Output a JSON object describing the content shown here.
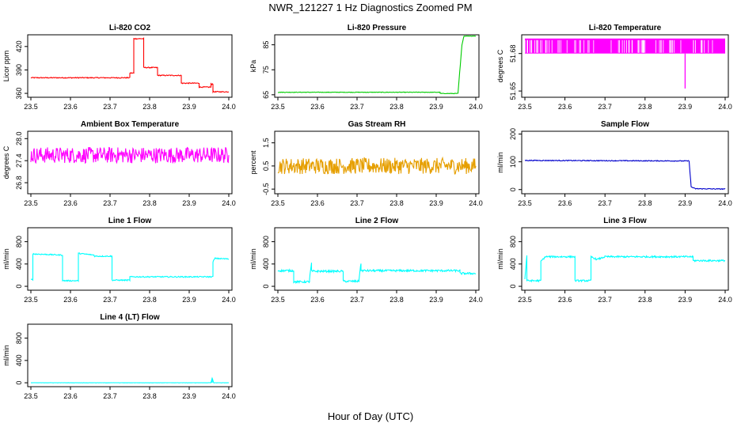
{
  "title": "NWR_121227  1 Hz Diagnostics Zoomed PM",
  "xlabel": "Hour of Day (UTC)",
  "chart_data": [
    {
      "type": "line",
      "title": "Li-820 CO2",
      "ylabel": "Licor ppm",
      "xlim": [
        23.5,
        24.0
      ],
      "ylim": [
        355,
        435
      ],
      "xticks": [
        "23.5",
        "23.6",
        "23.7",
        "23.8",
        "23.9",
        "24.0"
      ],
      "yticks": [
        "360",
        "390",
        "420"
      ],
      "color": "#ff0000",
      "noise": 0.6,
      "x": [
        23.5,
        23.75,
        23.75,
        23.76,
        23.76,
        23.785,
        23.785,
        23.82,
        23.82,
        23.88,
        23.88,
        23.925,
        23.925,
        23.955,
        23.955,
        23.96,
        23.96,
        24.0
      ],
      "y": [
        380,
        380,
        386,
        386,
        430,
        430,
        393,
        393,
        383,
        383,
        373,
        373,
        368,
        368,
        372,
        372,
        362,
        362
      ]
    },
    {
      "type": "line",
      "title": "Li-820 Pressure",
      "ylabel": "kPa",
      "xlim": [
        23.5,
        24.0
      ],
      "ylim": [
        64,
        89
      ],
      "xticks": [
        "23.5",
        "23.6",
        "23.7",
        "23.8",
        "23.9",
        "24.0"
      ],
      "yticks": [
        "65",
        "75",
        "85"
      ],
      "color": "#00cc00",
      "noise": 0.1,
      "x": [
        23.5,
        23.91,
        23.91,
        23.955,
        23.965,
        23.97,
        24.0
      ],
      "y": [
        66,
        66,
        65.5,
        65.5,
        85,
        88.5,
        88.5
      ]
    },
    {
      "type": "line",
      "title": "Li-820 Temperature",
      "ylabel": "degrees C",
      "xlim": [
        23.5,
        24.0
      ],
      "ylim": [
        51.645,
        51.695
      ],
      "xticks": [
        "23.5",
        "23.6",
        "23.7",
        "23.8",
        "23.9",
        "24.0"
      ],
      "yticks": [
        "51.65",
        "51.68"
      ],
      "color": "#ff00ff",
      "noise": 0,
      "x": [
        23.5,
        24.0
      ],
      "y": [
        51.68,
        51.68
      ],
      "fill_band": [
        51.68,
        51.692
      ],
      "spikes": [
        [
          23.9,
          51.652
        ]
      ]
    },
    {
      "type": "line",
      "title": "Ambient Box Temperature",
      "ylabel": "degrees C",
      "xlim": [
        23.5,
        24.0
      ],
      "ylim": [
        26.5,
        28.2
      ],
      "xticks": [
        "23.5",
        "23.6",
        "23.7",
        "23.8",
        "23.9",
        "24.0"
      ],
      "yticks": [
        "26.8",
        "27.4",
        "28.0"
      ],
      "color": "#ff00ff",
      "noise": 0.22,
      "x": [
        23.5,
        24.0
      ],
      "y": [
        27.55,
        27.55
      ]
    },
    {
      "type": "line",
      "title": "Gas Stream RH",
      "ylabel": "percent",
      "xlim": [
        23.5,
        24.0
      ],
      "ylim": [
        -0.7,
        2.0
      ],
      "xticks": [
        "23.5",
        "23.6",
        "23.7",
        "23.8",
        "23.9",
        "24.0"
      ],
      "yticks": [
        "-0.5",
        "0.5",
        "1.5"
      ],
      "color": "#e69f00",
      "noise": 0.35,
      "x": [
        23.5,
        24.0
      ],
      "y": [
        0.5,
        0.5
      ]
    },
    {
      "type": "line",
      "title": "Sample Flow",
      "ylabel": "ml/min",
      "xlim": [
        23.5,
        24.0
      ],
      "ylim": [
        -15,
        210
      ],
      "xticks": [
        "23.5",
        "23.6",
        "23.7",
        "23.8",
        "23.9",
        "24.0"
      ],
      "yticks": [
        "0",
        "100",
        "200"
      ],
      "color": "#0000cc",
      "noise": 1.5,
      "x": [
        23.5,
        23.91,
        23.915,
        23.925,
        24.0
      ],
      "y": [
        105,
        103,
        10,
        3,
        2
      ]
    },
    {
      "type": "line",
      "title": "Line 1 Flow",
      "ylabel": "ml/min",
      "xlim": [
        23.5,
        24.0
      ],
      "ylim": [
        -70,
        1050
      ],
      "xticks": [
        "23.5",
        "23.6",
        "23.7",
        "23.8",
        "23.9",
        "24.0"
      ],
      "yticks": [
        "0",
        "400",
        "800"
      ],
      "color": "#00ffff",
      "noise": 10,
      "x": [
        23.5,
        23.505,
        23.505,
        23.58,
        23.58,
        23.62,
        23.62,
        23.66,
        23.66,
        23.705,
        23.705,
        23.75,
        23.75,
        23.96,
        23.96,
        23.965,
        24.0
      ],
      "y": [
        120,
        120,
        580,
        560,
        100,
        100,
        590,
        560,
        540,
        540,
        110,
        110,
        170,
        170,
        440,
        500,
        490
      ]
    },
    {
      "type": "line",
      "title": "Line 2 Flow",
      "ylabel": "ml/min",
      "xlim": [
        23.5,
        24.0
      ],
      "ylim": [
        -70,
        1050
      ],
      "xticks": [
        "23.5",
        "23.6",
        "23.7",
        "23.8",
        "23.9",
        "24.0"
      ],
      "yticks": [
        "0",
        "400",
        "800"
      ],
      "color": "#00ffff",
      "noise": 18,
      "x": [
        23.5,
        23.54,
        23.54,
        23.58,
        23.58,
        23.585,
        23.585,
        23.665,
        23.665,
        23.705,
        23.705,
        23.71,
        23.71,
        23.96,
        23.96,
        24.0
      ],
      "y": [
        280,
        280,
        80,
        80,
        130,
        420,
        270,
        270,
        90,
        90,
        130,
        420,
        280,
        280,
        230,
        230
      ]
    },
    {
      "type": "line",
      "title": "Line 3 Flow",
      "ylabel": "ml/min",
      "xlim": [
        23.5,
        24.0
      ],
      "ylim": [
        -70,
        1050
      ],
      "xticks": [
        "23.5",
        "23.6",
        "23.7",
        "23.8",
        "23.9",
        "24.0"
      ],
      "yticks": [
        "0",
        "400",
        "800"
      ],
      "color": "#00ffff",
      "noise": 15,
      "x": [
        23.5,
        23.505,
        23.505,
        23.54,
        23.54,
        23.55,
        23.55,
        23.625,
        23.625,
        23.665,
        23.665,
        23.68,
        23.7,
        23.92,
        23.92,
        24.0
      ],
      "y": [
        130,
        560,
        100,
        100,
        450,
        520,
        530,
        530,
        100,
        100,
        530,
        480,
        530,
        530,
        460,
        460
      ]
    },
    {
      "type": "line",
      "title": "Line 4 (LT) Flow",
      "ylabel": "ml/min",
      "xlim": [
        23.5,
        24.0
      ],
      "ylim": [
        -70,
        1050
      ],
      "xticks": [
        "23.5",
        "23.6",
        "23.7",
        "23.8",
        "23.9",
        "24.0"
      ],
      "yticks": [
        "0",
        "400",
        "800"
      ],
      "color": "#00ffff",
      "noise": 2,
      "x": [
        23.5,
        23.955,
        23.958,
        23.962,
        24.0
      ],
      "y": [
        0,
        0,
        80,
        0,
        0
      ],
      "spikes": [
        [
          23.958,
          80
        ]
      ]
    }
  ]
}
